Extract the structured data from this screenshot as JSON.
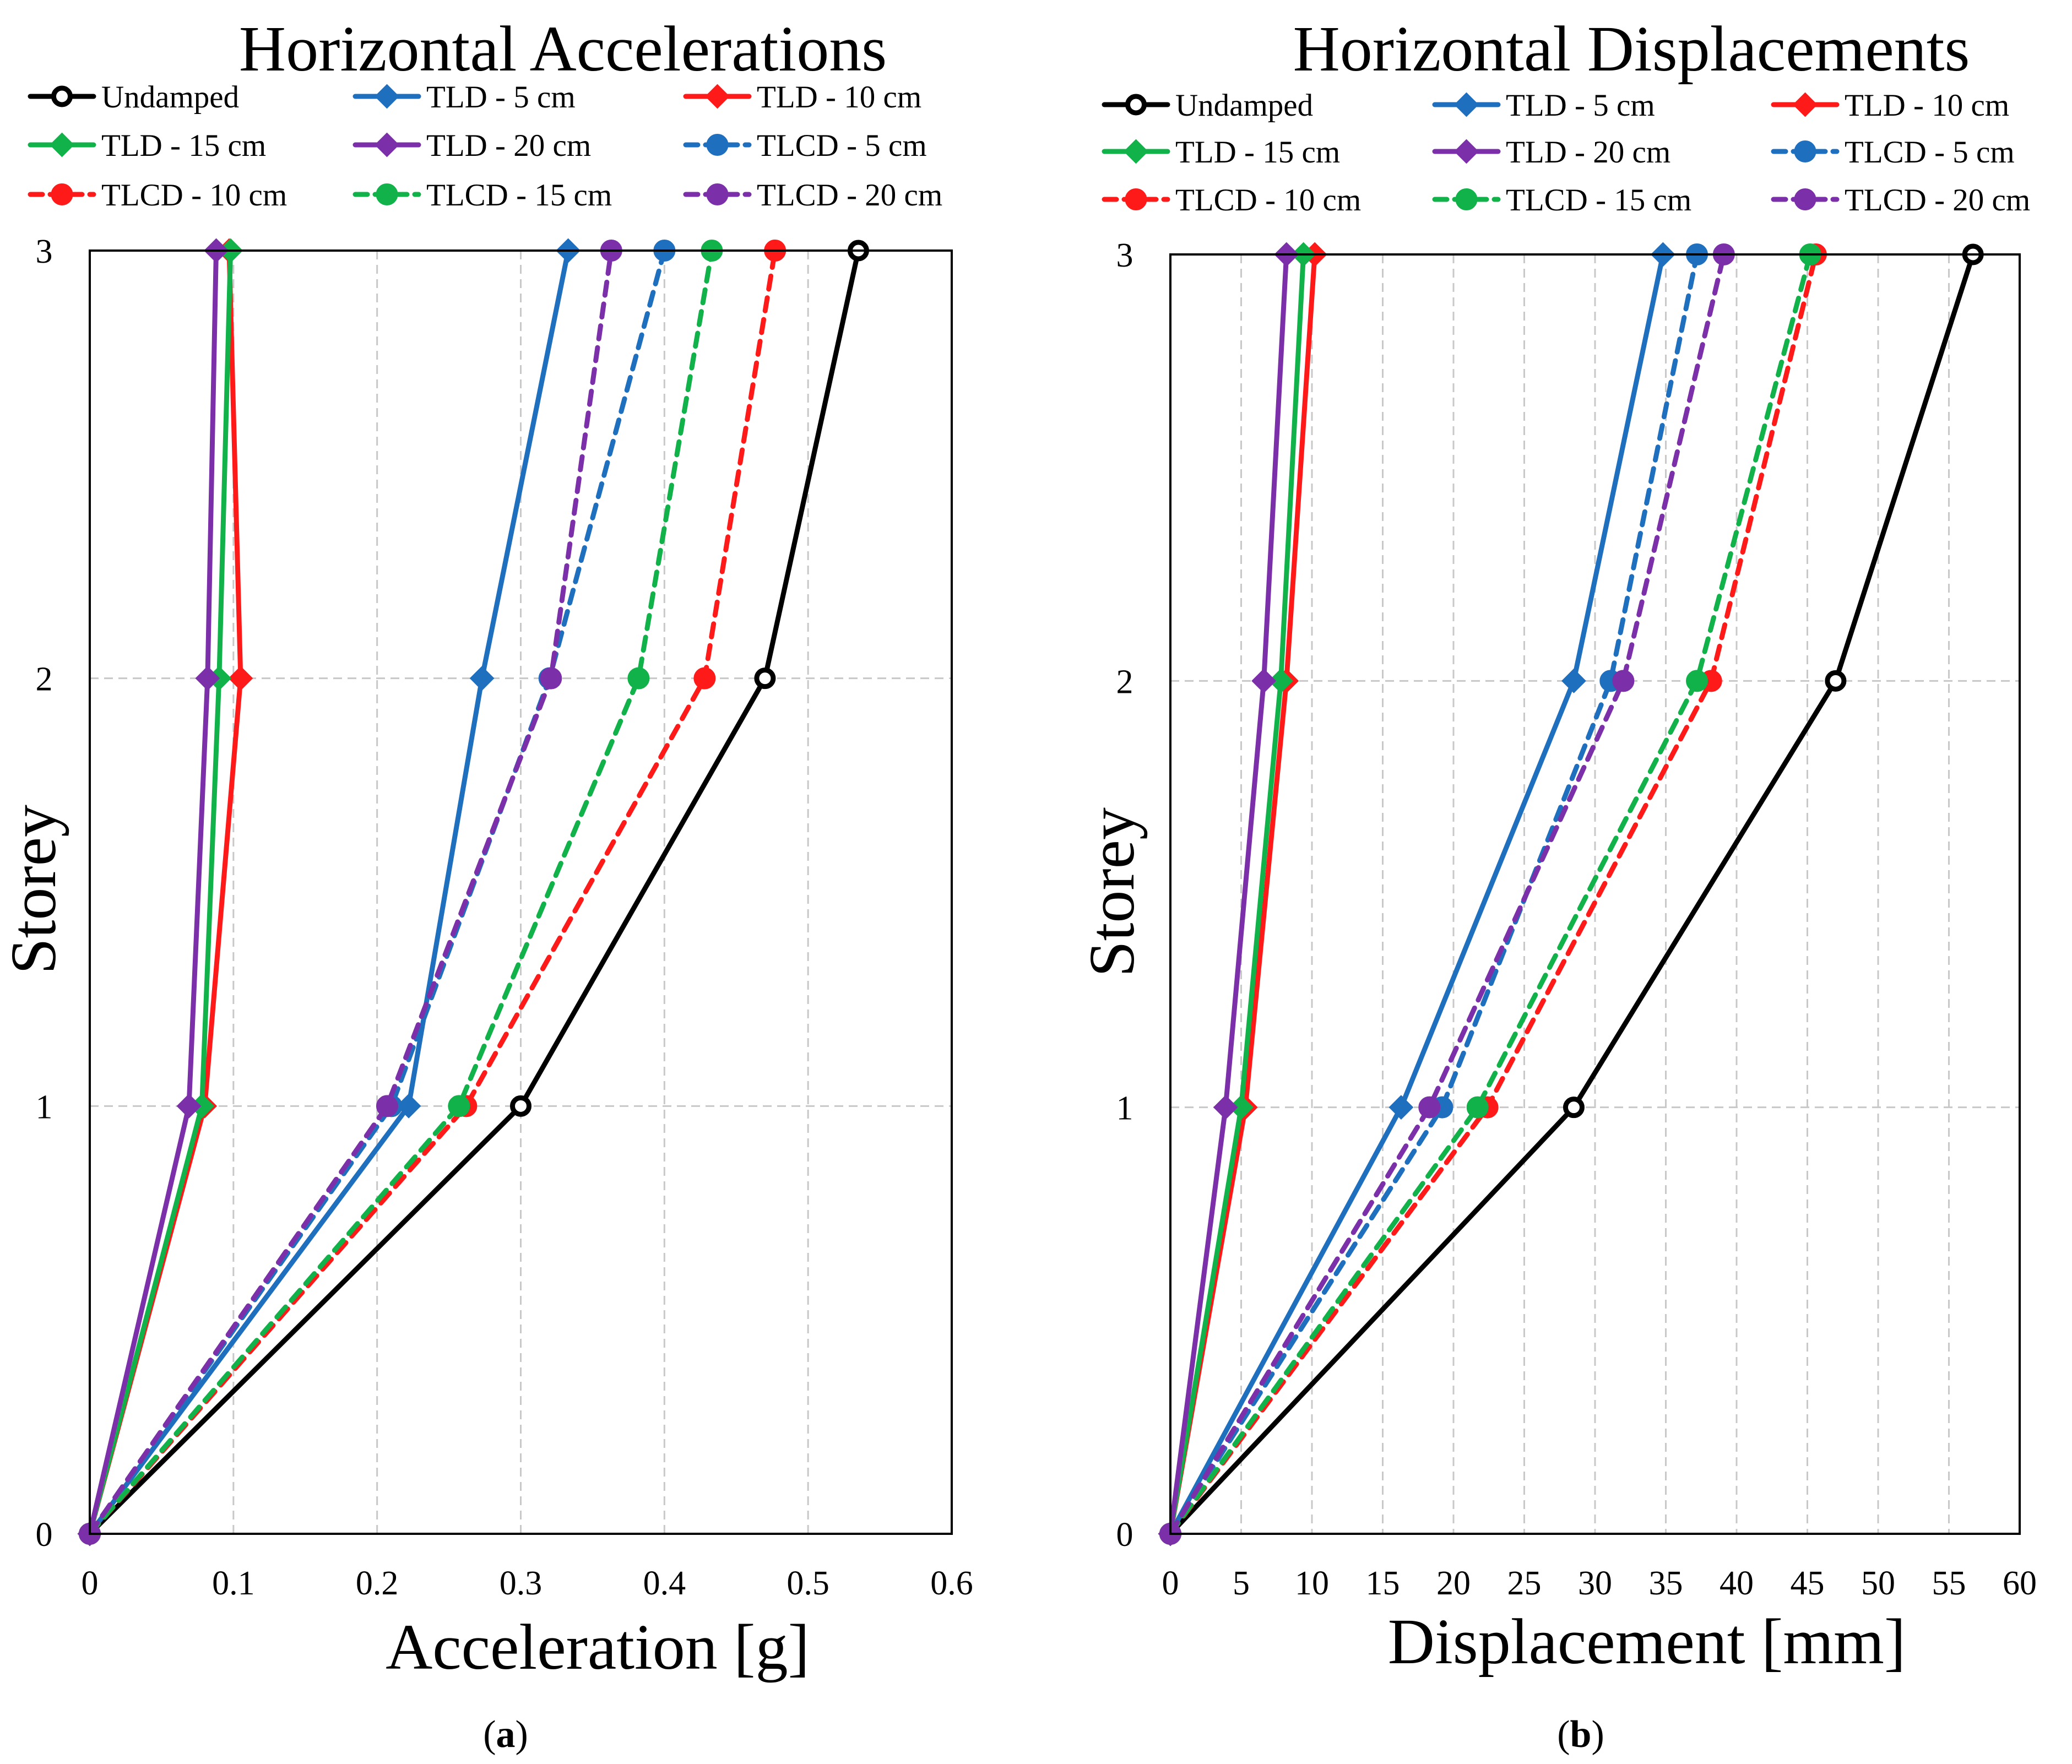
{
  "styles": {
    "colors": {
      "black": "#000000",
      "blue": "#1f6fbf",
      "red": "#ff1a1a",
      "green": "#12b24a",
      "purple": "#7b2fa8"
    }
  },
  "chart_data": [
    {
      "type": "line",
      "panel": "a",
      "caption_letter": "a",
      "title": "Horizontal Accelerations",
      "xlabel": "Acceleration [g]",
      "ylabel": "Storey",
      "xlim": [
        0,
        0.6
      ],
      "ylim": [
        0,
        3
      ],
      "xticks": [
        "0",
        "0.1",
        "0.2",
        "0.3",
        "0.4",
        "0.5",
        "0.6"
      ],
      "yticks": [
        "0",
        "1",
        "2",
        "3"
      ],
      "grid": true,
      "legend_position": "top",
      "y": [
        0,
        1,
        2,
        3
      ],
      "series": [
        {
          "name": "Undamped",
          "color": "black",
          "marker": "circle-open",
          "dashed": false,
          "x": [
            0,
            0.3,
            0.47,
            0.535
          ]
        },
        {
          "name": "TLD - 5 cm",
          "color": "blue",
          "marker": "diamond",
          "dashed": false,
          "x": [
            0,
            0.222,
            0.273,
            0.333
          ]
        },
        {
          "name": "TLD - 10 cm",
          "color": "red",
          "marker": "diamond",
          "dashed": false,
          "x": [
            0,
            0.08,
            0.105,
            0.097
          ]
        },
        {
          "name": "TLD - 15 cm",
          "color": "green",
          "marker": "diamond",
          "dashed": false,
          "x": [
            0,
            0.078,
            0.09,
            0.098
          ]
        },
        {
          "name": "TLD - 20 cm",
          "color": "purple",
          "marker": "diamond",
          "dashed": false,
          "x": [
            0,
            0.069,
            0.082,
            0.088
          ]
        },
        {
          "name": "TLCD - 5 cm",
          "color": "blue",
          "marker": "circle",
          "dashed": true,
          "x": [
            0,
            0.21,
            0.32,
            0.4
          ]
        },
        {
          "name": "TLCD - 10 cm",
          "color": "red",
          "marker": "circle",
          "dashed": true,
          "x": [
            0,
            0.262,
            0.428,
            0.477
          ]
        },
        {
          "name": "TLCD - 15 cm",
          "color": "green",
          "marker": "circle",
          "dashed": true,
          "x": [
            0,
            0.257,
            0.382,
            0.433
          ]
        },
        {
          "name": "TLCD - 20 cm",
          "color": "purple",
          "marker": "circle",
          "dashed": true,
          "x": [
            0,
            0.207,
            0.321,
            0.363
          ]
        }
      ]
    },
    {
      "type": "line",
      "panel": "b",
      "caption_letter": "b",
      "title": "Horizontal Displacements",
      "xlabel": "Displacement [mm]",
      "ylabel": "Storey",
      "xlim": [
        0,
        60
      ],
      "ylim": [
        0,
        3
      ],
      "xticks": [
        "0",
        "5",
        "10",
        "15",
        "20",
        "25",
        "30",
        "35",
        "40",
        "45",
        "50",
        "55",
        "60"
      ],
      "yticks": [
        "0",
        "1",
        "2",
        "3"
      ],
      "grid": true,
      "legend_position": "top",
      "y": [
        0,
        1,
        2,
        3
      ],
      "series": [
        {
          "name": "Undamped",
          "color": "black",
          "marker": "circle-open",
          "dashed": false,
          "x": [
            0,
            28.5,
            47,
            56.7
          ]
        },
        {
          "name": "TLD - 5 cm",
          "color": "blue",
          "marker": "diamond",
          "dashed": false,
          "x": [
            0,
            16.3,
            28.5,
            34.8
          ]
        },
        {
          "name": "TLD - 10 cm",
          "color": "red",
          "marker": "diamond",
          "dashed": false,
          "x": [
            0,
            5.3,
            8.2,
            10.2
          ]
        },
        {
          "name": "TLD - 15 cm",
          "color": "green",
          "marker": "diamond",
          "dashed": false,
          "x": [
            0,
            5,
            7.8,
            9.4
          ]
        },
        {
          "name": "TLD - 20 cm",
          "color": "purple",
          "marker": "diamond",
          "dashed": false,
          "x": [
            0,
            3.9,
            6.6,
            8.2
          ]
        },
        {
          "name": "TLCD - 5 cm",
          "color": "blue",
          "marker": "circle",
          "dashed": true,
          "x": [
            0,
            19.2,
            31.1,
            37.2
          ]
        },
        {
          "name": "TLCD - 10 cm",
          "color": "red",
          "marker": "circle",
          "dashed": true,
          "x": [
            0,
            22.4,
            38.2,
            45.6
          ]
        },
        {
          "name": "TLCD - 15 cm",
          "color": "green",
          "marker": "circle",
          "dashed": true,
          "x": [
            0,
            21.7,
            37.2,
            45.2
          ]
        },
        {
          "name": "TLCD - 20 cm",
          "color": "purple",
          "marker": "circle",
          "dashed": true,
          "x": [
            0,
            18.3,
            32,
            39.1
          ]
        }
      ]
    }
  ]
}
